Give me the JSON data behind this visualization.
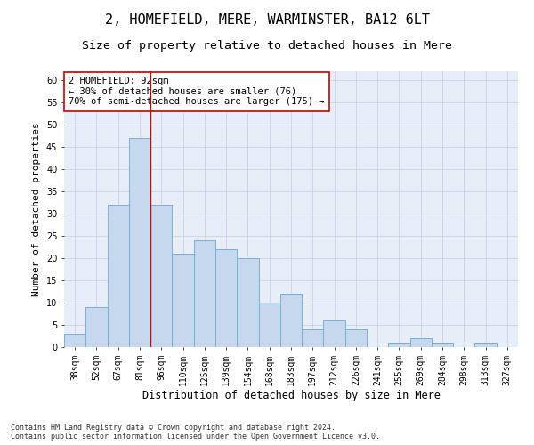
{
  "title1": "2, HOMEFIELD, MERE, WARMINSTER, BA12 6LT",
  "title2": "Size of property relative to detached houses in Mere",
  "xlabel": "Distribution of detached houses by size in Mere",
  "ylabel": "Number of detached properties",
  "categories": [
    "38sqm",
    "52sqm",
    "67sqm",
    "81sqm",
    "96sqm",
    "110sqm",
    "125sqm",
    "139sqm",
    "154sqm",
    "168sqm",
    "183sqm",
    "197sqm",
    "212sqm",
    "226sqm",
    "241sqm",
    "255sqm",
    "269sqm",
    "284sqm",
    "298sqm",
    "313sqm",
    "327sqm"
  ],
  "values": [
    3,
    9,
    32,
    47,
    32,
    21,
    24,
    22,
    20,
    10,
    12,
    4,
    6,
    4,
    0,
    1,
    2,
    1,
    0,
    1,
    0
  ],
  "bar_color": "#c5d8ed",
  "bar_edge_color": "#7ab0d4",
  "bar_width": 1.0,
  "property_bar_index": 3.5,
  "vline_color": "#cc0000",
  "annotation_text": "2 HOMEFIELD: 92sqm\n← 30% of detached houses are smaller (76)\n70% of semi-detached houses are larger (175) →",
  "annotation_box_color": "#ffffff",
  "annotation_box_edge": "#cc0000",
  "ylim": [
    0,
    62
  ],
  "yticks": [
    0,
    5,
    10,
    15,
    20,
    25,
    30,
    35,
    40,
    45,
    50,
    55,
    60
  ],
  "grid_color": "#c8d4e8",
  "bg_color": "#e8eef8",
  "footer": "Contains HM Land Registry data © Crown copyright and database right 2024.\nContains public sector information licensed under the Open Government Licence v3.0.",
  "title1_fontsize": 11,
  "title2_fontsize": 9.5,
  "xlabel_fontsize": 8.5,
  "ylabel_fontsize": 8,
  "tick_fontsize": 7,
  "annotation_fontsize": 7.5,
  "footer_fontsize": 6
}
